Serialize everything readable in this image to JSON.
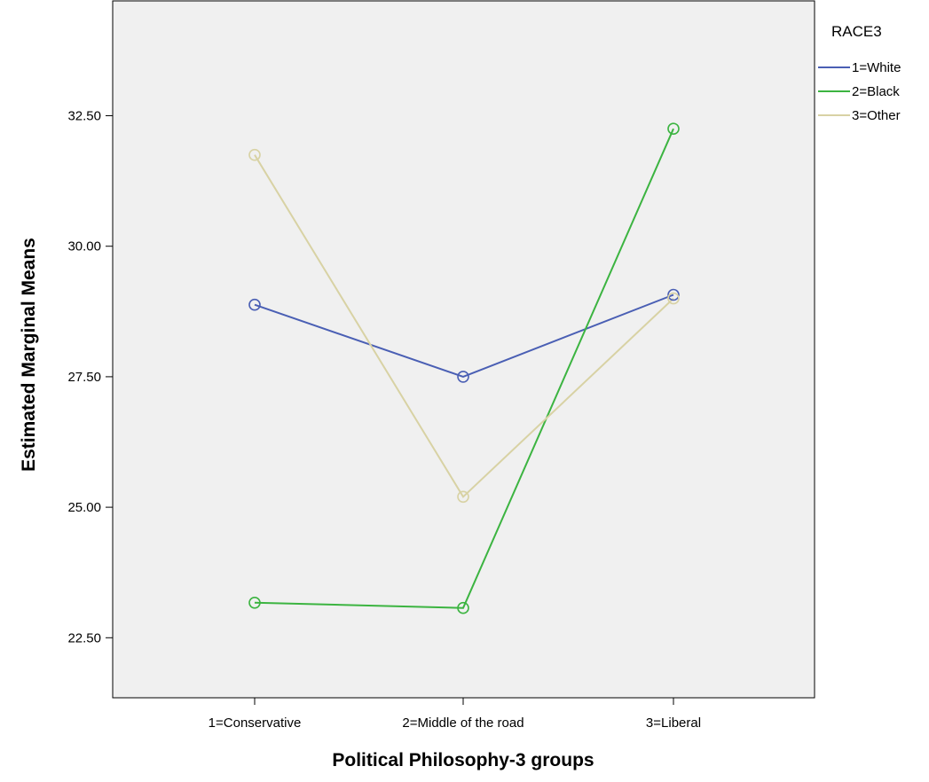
{
  "chart_data": {
    "type": "line",
    "xlabel": "Political Philosophy-3 groups",
    "ylabel": "Estimated Marginal Means",
    "categories": [
      "1=Conservative",
      "2=Middle of the road",
      "3=Liberal"
    ],
    "ylim": [
      21.35,
      34.7
    ],
    "yticks": [
      22.5,
      25.0,
      27.5,
      30.0,
      32.5
    ],
    "ytick_labels": [
      "22.50",
      "25.00",
      "27.50",
      "30.00",
      "32.50"
    ],
    "legend_title": "RACE3",
    "legend_position": "right",
    "grid": false,
    "plot_background": "#f0f0f0",
    "series": [
      {
        "name": "1=White",
        "color": "#4a5fb4",
        "values": [
          28.88,
          27.5,
          29.07
        ]
      },
      {
        "name": "2=Black",
        "color": "#3cb441",
        "values": [
          23.17,
          23.07,
          32.25
        ]
      },
      {
        "name": "3=Other",
        "color": "#d8d2a4",
        "values": [
          31.75,
          25.2,
          29.0
        ]
      }
    ]
  }
}
